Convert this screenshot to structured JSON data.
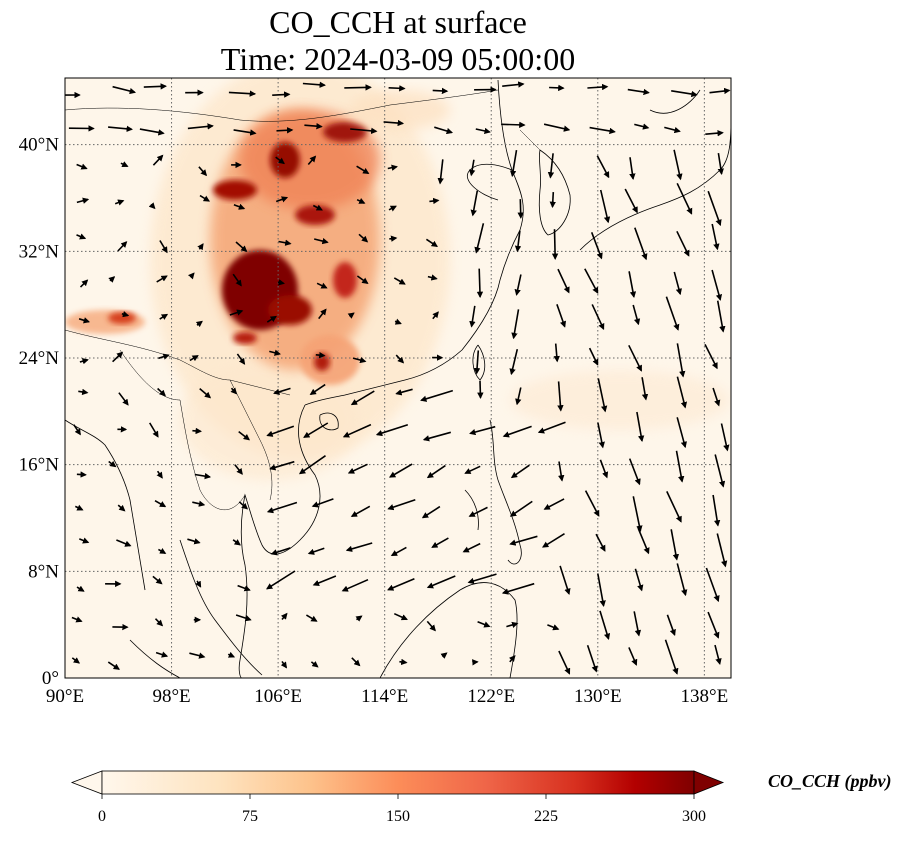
{
  "title": {
    "line1": "CO_CCH at surface",
    "line2": "Time: 2024-03-09 05:00:00"
  },
  "map": {
    "lon_range": [
      90,
      140
    ],
    "lat_range": [
      0,
      45
    ],
    "x_ticks": [
      {
        "value": 90,
        "label": "90°E"
      },
      {
        "value": 98,
        "label": "98°E"
      },
      {
        "value": 106,
        "label": "106°E"
      },
      {
        "value": 114,
        "label": "114°E"
      },
      {
        "value": 122,
        "label": "122°E"
      },
      {
        "value": 130,
        "label": "130°E"
      },
      {
        "value": 138,
        "label": "138°E"
      }
    ],
    "y_ticks": [
      {
        "value": 0,
        "label": "0°"
      },
      {
        "value": 8,
        "label": "8°N"
      },
      {
        "value": 16,
        "label": "16°N"
      },
      {
        "value": 24,
        "label": "24°N"
      },
      {
        "value": 32,
        "label": "32°N"
      },
      {
        "value": 40,
        "label": "40°N"
      }
    ],
    "gridlines": true
  },
  "colorbar": {
    "colormap": "OrRd",
    "min": 0,
    "max": 300,
    "extend": "both",
    "ticks": [
      {
        "value": 0,
        "label": "0"
      },
      {
        "value": 75,
        "label": "75"
      },
      {
        "value": 150,
        "label": "150"
      },
      {
        "value": 225,
        "label": "225"
      },
      {
        "value": 300,
        "label": "300"
      }
    ],
    "label": "CO_CCH (ppbv)"
  },
  "colors": {
    "background_field": "#fef6ea",
    "low": "#fdd5a0",
    "mid": "#f0744a",
    "high": "#7f0000",
    "coastline": "#000000",
    "grid": "#666666"
  }
}
